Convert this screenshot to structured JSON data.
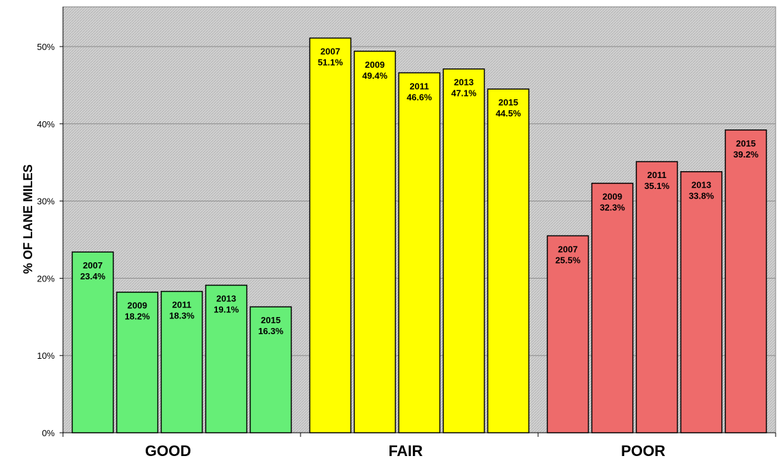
{
  "chart_data": {
    "type": "bar",
    "ylabel": "% OF LANE MILES",
    "ylim": [
      0,
      55
    ],
    "yticks": [
      0,
      10,
      20,
      30,
      40,
      50
    ],
    "ytick_labels": [
      "0%",
      "10%",
      "20%",
      "30%",
      "40%",
      "50%"
    ],
    "grid": true,
    "categories": [
      "GOOD",
      "FAIR",
      "POOR"
    ],
    "groups": [
      {
        "category": "GOOD",
        "color": "#66ee77",
        "bars": [
          {
            "year": "2007",
            "value": 23.4,
            "label": "23.4%"
          },
          {
            "year": "2009",
            "value": 18.2,
            "label": "18.2%"
          },
          {
            "year": "2011",
            "value": 18.3,
            "label": "18.3%"
          },
          {
            "year": "2013",
            "value": 19.1,
            "label": "19.1%"
          },
          {
            "year": "2015",
            "value": 16.3,
            "label": "16.3%"
          }
        ]
      },
      {
        "category": "FAIR",
        "color": "#ffff00",
        "bars": [
          {
            "year": "2007",
            "value": 51.1,
            "label": "51.1%"
          },
          {
            "year": "2009",
            "value": 49.4,
            "label": "49.4%"
          },
          {
            "year": "2011",
            "value": 46.6,
            "label": "46.6%"
          },
          {
            "year": "2013",
            "value": 47.1,
            "label": "47.1%"
          },
          {
            "year": "2015",
            "value": 44.5,
            "label": "44.5%"
          }
        ]
      },
      {
        "category": "POOR",
        "color": "#ee6b6b",
        "bars": [
          {
            "year": "2007",
            "value": 25.5,
            "label": "25.5%"
          },
          {
            "year": "2009",
            "value": 32.3,
            "label": "32.3%"
          },
          {
            "year": "2011",
            "value": 35.1,
            "label": "35.1%"
          },
          {
            "year": "2013",
            "value": 33.8,
            "label": "33.8%"
          },
          {
            "year": "2015",
            "value": 39.2,
            "label": "39.2%"
          }
        ]
      }
    ]
  }
}
